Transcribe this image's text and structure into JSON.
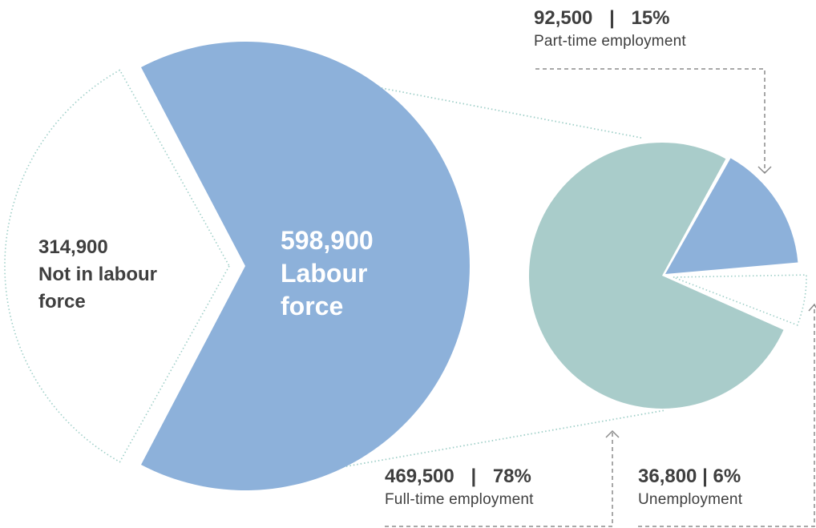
{
  "chart_data": {
    "type": "pie",
    "charts": [
      {
        "id": "population",
        "slices": [
          {
            "label_lines": [
              "Labour",
              "force"
            ],
            "value": 598900,
            "value_text": "598,900",
            "color": "#8db1da"
          },
          {
            "label_lines": [
              "Not in labour",
              "force"
            ],
            "value": 314900,
            "value_text": "314,900",
            "color": "#ffffff",
            "outline": "#9fcfc8"
          }
        ]
      },
      {
        "id": "labour-force-breakdown",
        "slices": [
          {
            "label": "Full-time employment",
            "value": 469500,
            "value_text": "469,500",
            "percent_text": "78%",
            "color": "#a9ccca"
          },
          {
            "label": "Part-time employment",
            "value": 92500,
            "value_text": "92,500",
            "percent_text": "15%",
            "color": "#8db1da"
          },
          {
            "label": "Unemployment",
            "value": 36800,
            "value_text": "36,800",
            "percent_text": "6%",
            "color": "#ffffff",
            "outline": "#9fcfc8"
          }
        ]
      }
    ]
  },
  "colors": {
    "text": "#3f3f3f",
    "connector": "#9fcfc8",
    "pointer": "#8c8c8c"
  }
}
